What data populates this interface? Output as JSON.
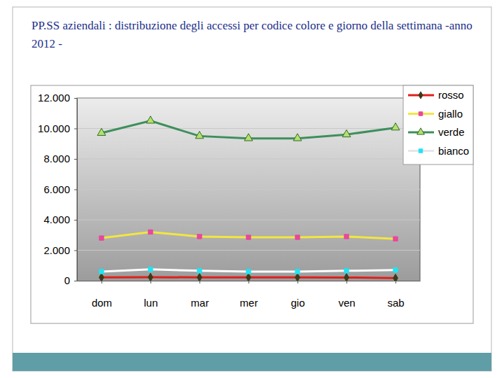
{
  "chart_data": {
    "type": "line",
    "title": "PP.SS aziendali : distribuzione degli accessi per codice colore e giorno della settimana -anno 2012 -",
    "categories": [
      "dom",
      "lun",
      "mar",
      "mer",
      "gio",
      "ven",
      "sab"
    ],
    "series": [
      {
        "name": "rosso",
        "color": "#e0201b",
        "marker": "diamond",
        "values": [
          220,
          230,
          220,
          220,
          220,
          210,
          170
        ]
      },
      {
        "name": "giallo",
        "color": "#f2e640",
        "marker": "square",
        "values": [
          2800,
          3200,
          2900,
          2850,
          2850,
          2900,
          2750
        ]
      },
      {
        "name": "verde",
        "color": "#3d8f5c",
        "marker": "triangle",
        "values": [
          9700,
          10500,
          9500,
          9350,
          9350,
          9600,
          10050
        ]
      },
      {
        "name": "bianco",
        "color": "#ffffff",
        "marker": "square",
        "values": [
          600,
          750,
          650,
          600,
          600,
          650,
          700
        ]
      }
    ],
    "ylim": [
      0,
      12000
    ],
    "yticks": [
      0,
      {
        "value": 2000,
        "label": "2.000"
      },
      {
        "value": 4000,
        "label": "4.000"
      },
      {
        "value": 6000,
        "label": "6.000"
      },
      {
        "value": 8000,
        "label": "8.000"
      },
      {
        "value": 10000,
        "label": "10.000"
      },
      {
        "value": 12000,
        "label": "12.000"
      }
    ],
    "grid": true,
    "legend": "top-right"
  }
}
